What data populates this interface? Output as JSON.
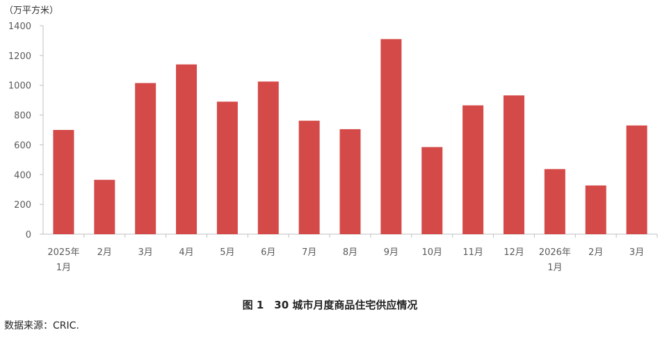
{
  "chart_data": {
    "type": "bar",
    "ylabel": "（万平方米）",
    "ylim": [
      0,
      1400
    ],
    "yticks": [
      0,
      200,
      400,
      600,
      800,
      1000,
      1200,
      1400
    ],
    "categories": [
      [
        "2025年",
        "1月"
      ],
      [
        "2月"
      ],
      [
        "3月"
      ],
      [
        "4月"
      ],
      [
        "5月"
      ],
      [
        "6月"
      ],
      [
        "7月"
      ],
      [
        "8月"
      ],
      [
        "9月"
      ],
      [
        "10月"
      ],
      [
        "11月"
      ],
      [
        "12月"
      ],
      [
        "2026年",
        "1月"
      ],
      [
        "2月"
      ],
      [
        "3月"
      ]
    ],
    "values": [
      700,
      365,
      1015,
      1140,
      890,
      1025,
      762,
      705,
      1310,
      585,
      865,
      932,
      437,
      327,
      730
    ],
    "bar_color": "#D44A48",
    "grid": false,
    "legend": "none"
  },
  "caption": "图 1　30 城市月度商品住宅供应情况",
  "source": "数据来源：CRIC."
}
